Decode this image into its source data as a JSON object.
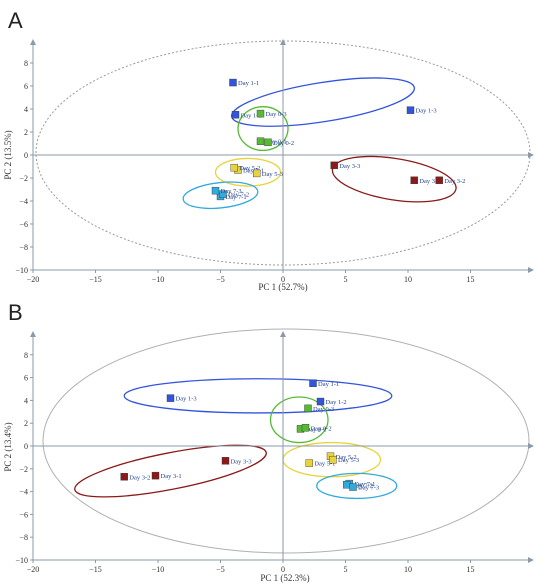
{
  "panels": [
    {
      "letter": "A"
    },
    {
      "letter": "B"
    }
  ],
  "chart_data": [
    {
      "type": "scatter",
      "panel": "A",
      "xlabel": "PC 1 (52.7%)",
      "ylabel": "PC 2 (13.5%)",
      "xlim": [
        -20,
        20
      ],
      "ylim": [
        -10,
        10
      ],
      "xticks": [
        -20,
        -15,
        -10,
        -5,
        0,
        5,
        10,
        15
      ],
      "yticks": [
        -10,
        -8,
        -6,
        -4,
        -2,
        0,
        2,
        4,
        6,
        8
      ],
      "series": [
        {
          "name": "Day 1",
          "color": "#3355dd",
          "points": [
            {
              "label": "Day 1-1",
              "x": -4,
              "y": 6.3
            },
            {
              "label": "Day 1-2",
              "x": -3.8,
              "y": 3.5
            },
            {
              "label": "Day 1-3",
              "x": 10.2,
              "y": 3.9
            }
          ]
        },
        {
          "name": "Day 0",
          "color": "#55bb33",
          "points": [
            {
              "label": "Day 0-1",
              "x": -1.8,
              "y": 1.2
            },
            {
              "label": "Day 0-2",
              "x": -1.2,
              "y": 1.1
            },
            {
              "label": "Day 0-3",
              "x": -1.8,
              "y": 3.6
            }
          ]
        },
        {
          "name": "Day 5",
          "color": "#e8d33c",
          "points": [
            {
              "label": "Day 5-1",
              "x": -3.6,
              "y": -1.3
            },
            {
              "label": "Day 5-2",
              "x": -3.9,
              "y": -1.1
            },
            {
              "label": "Day 5-3",
              "x": -2.1,
              "y": -1.6
            }
          ]
        },
        {
          "name": "Day 7",
          "color": "#33aadd",
          "points": [
            {
              "label": "Day 7-1",
              "x": -5,
              "y": -3.6
            },
            {
              "label": "Day 7-2",
              "x": -4.8,
              "y": -3.4
            },
            {
              "label": "Day 7-3",
              "x": -5.4,
              "y": -3.1
            }
          ]
        },
        {
          "name": "Day 3",
          "color": "#8b1a1a",
          "points": [
            {
              "label": "Day 3-1",
              "x": 10.5,
              "y": -2.2
            },
            {
              "label": "Day 3-2",
              "x": 12.5,
              "y": -2.2
            },
            {
              "label": "Day 3-3",
              "x": 4.1,
              "y": -0.9
            }
          ]
        }
      ]
    },
    {
      "type": "scatter",
      "panel": "B",
      "xlabel": "PC 1 (52.3%)",
      "ylabel": "PC 2 (13.4%)",
      "xlim": [
        -20,
        20
      ],
      "ylim": [
        -10,
        10
      ],
      "xticks": [
        -20,
        -15,
        -10,
        -5,
        0,
        5,
        10,
        15
      ],
      "yticks": [
        -10,
        -8,
        -6,
        -4,
        -2,
        0,
        2,
        4,
        6,
        8
      ],
      "series": [
        {
          "name": "Day 1",
          "color": "#3355dd",
          "points": [
            {
              "label": "Day 1-1",
              "x": 2.4,
              "y": 5.5
            },
            {
              "label": "Day 1-2",
              "x": 3,
              "y": 3.9
            },
            {
              "label": "Day 1-3",
              "x": -9,
              "y": 4.2
            }
          ]
        },
        {
          "name": "Day 0",
          "color": "#55bb33",
          "points": [
            {
              "label": "Day 0-1",
              "x": 1.4,
              "y": 1.5
            },
            {
              "label": "Day 0-2",
              "x": 1.8,
              "y": 1.6
            },
            {
              "label": "Day 0-3",
              "x": 2,
              "y": 3.3
            }
          ]
        },
        {
          "name": "Day 5",
          "color": "#e8d33c",
          "points": [
            {
              "label": "Day 5-1",
              "x": 2.1,
              "y": -1.5
            },
            {
              "label": "Day 5-2",
              "x": 3.8,
              "y": -0.9
            },
            {
              "label": "Day 5-3",
              "x": 4,
              "y": -1.2
            }
          ]
        },
        {
          "name": "Day 7",
          "color": "#33aadd",
          "points": [
            {
              "label": "Day 7-1",
              "x": 5.3,
              "y": -3.3
            },
            {
              "label": "Day 7-2",
              "x": 5.1,
              "y": -3.4
            },
            {
              "label": "Day 7-3",
              "x": 5.6,
              "y": -3.6
            }
          ]
        },
        {
          "name": "Day 3",
          "color": "#8b1a1a",
          "points": [
            {
              "label": "Day 3-1",
              "x": -10.2,
              "y": -2.6
            },
            {
              "label": "Day 3-2",
              "x": -12.7,
              "y": -2.7
            },
            {
              "label": "Day 3-3",
              "x": -4.6,
              "y": -1.3
            }
          ]
        }
      ]
    }
  ]
}
